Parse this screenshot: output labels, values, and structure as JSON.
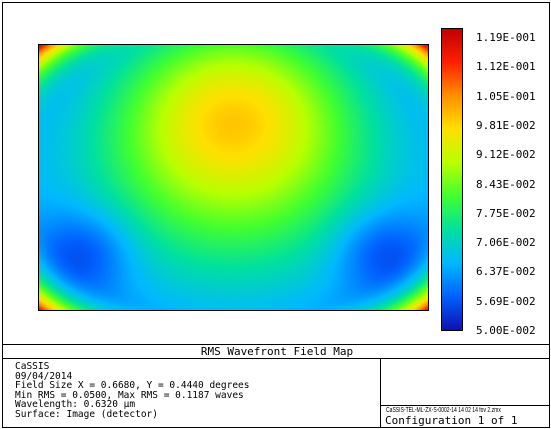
{
  "chart_data": {
    "type": "heatmap",
    "title": "RMS Wavefront Field Map",
    "colorbar_ticks": [
      "1.19E-001",
      "1.12E-001",
      "1.05E-001",
      "9.81E-002",
      "9.12E-002",
      "8.43E-002",
      "7.75E-002",
      "7.06E-002",
      "6.37E-002",
      "5.69E-002",
      "5.00E-002"
    ],
    "colorbar_range": [
      0.05,
      0.1187
    ],
    "colormap": [
      "#c00000",
      "#ff2000",
      "#ff9000",
      "#ffe000",
      "#b8ff00",
      "#40ff30",
      "#00e0a0",
      "#00b8ff",
      "#0060ff",
      "#1010b0"
    ],
    "field_size_x": 0.668,
    "field_size_y": 0.444,
    "min_rms": 0.05,
    "max_rms": 0.1187
  },
  "info": {
    "line1": "CaSSIS",
    "line2": "09/04/2014",
    "line3": "Field Size X = 0.6680, Y = 0.4440 degrees",
    "line4": "Min RMS = 0.0500, Max RMS = 0.1187 waves",
    "line5": "Wavelength: 0.6320 µm",
    "line6": "Surface: Image (detector)"
  },
  "footer": {
    "filename": "CaSSIS-TEL-ML-ZX-S-0002-14 14 02 14 fov 2.zmx",
    "configuration": "Configuration 1 of 1"
  }
}
